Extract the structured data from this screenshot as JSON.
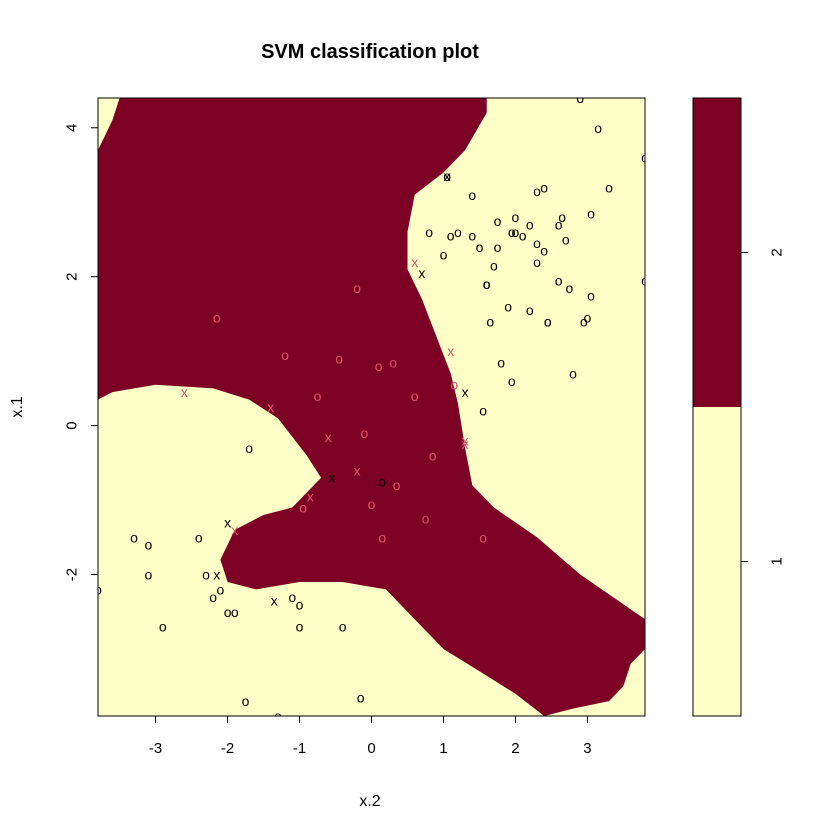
{
  "chart_data": {
    "type": "scatter",
    "title": "SVM classification plot",
    "xlabel": "x.2",
    "ylabel": "x.1",
    "xlim": [
      -3.8,
      3.8
    ],
    "ylim": [
      -3.9,
      4.4
    ],
    "xticks": [
      "-3",
      "-2",
      "-1",
      "0",
      "1",
      "2",
      "3"
    ],
    "xtick_values": [
      -3,
      -2,
      -1,
      0,
      1,
      2,
      3
    ],
    "yticks": [
      "-2",
      "0",
      "2",
      "4"
    ],
    "ytick_values": [
      -2,
      0,
      2,
      4
    ],
    "region_colors": {
      "1": "#FFFFC8",
      "2": "#7D0025"
    },
    "legend_labels": [
      "1",
      "2"
    ],
    "point_colors": {
      "1": "#000000",
      "2": "#DF536B"
    },
    "decision_region_class2_polygon": [
      [
        -3.8,
        4.4
      ],
      [
        1.6,
        4.4
      ],
      [
        1.6,
        4.2
      ],
      [
        1.3,
        3.7
      ],
      [
        1.0,
        3.4
      ],
      [
        0.6,
        3.1
      ],
      [
        0.5,
        2.6
      ],
      [
        0.5,
        2.1
      ],
      [
        0.7,
        1.7
      ],
      [
        0.9,
        1.2
      ],
      [
        1.1,
        0.7
      ],
      [
        1.2,
        0.3
      ],
      [
        1.3,
        -0.3
      ],
      [
        1.4,
        -0.8
      ],
      [
        1.7,
        -1.1
      ],
      [
        2.3,
        -1.5
      ],
      [
        2.9,
        -2.0
      ],
      [
        3.5,
        -2.4
      ],
      [
        3.8,
        -2.6
      ],
      [
        3.8,
        -3.0
      ],
      [
        3.6,
        -3.2
      ],
      [
        3.5,
        -3.5
      ],
      [
        3.3,
        -3.7
      ],
      [
        2.8,
        -3.8
      ],
      [
        2.4,
        -3.9
      ],
      [
        2.0,
        -3.6
      ],
      [
        1.5,
        -3.3
      ],
      [
        1.0,
        -3.0
      ],
      [
        0.6,
        -2.6
      ],
      [
        0.2,
        -2.2
      ],
      [
        -0.4,
        -2.1
      ],
      [
        -1.0,
        -2.1
      ],
      [
        -1.6,
        -2.2
      ],
      [
        -2.0,
        -2.1
      ],
      [
        -2.1,
        -1.8
      ],
      [
        -1.9,
        -1.4
      ],
      [
        -1.5,
        -1.2
      ],
      [
        -1.1,
        -1.1
      ],
      [
        -0.7,
        -0.7
      ],
      [
        -0.9,
        -0.4
      ],
      [
        -1.3,
        0.1
      ],
      [
        -1.7,
        0.35
      ],
      [
        -2.2,
        0.5
      ],
      [
        -3.0,
        0.55
      ],
      [
        -3.6,
        0.45
      ],
      [
        -3.8,
        0.35
      ],
      [
        -3.8,
        3.7
      ],
      [
        -3.6,
        4.1
      ],
      [
        -3.5,
        4.4
      ]
    ],
    "series": [
      {
        "name": "1",
        "marker": "o",
        "points": [
          [
            -3.8,
            -2.2
          ],
          [
            -3.3,
            -1.5
          ],
          [
            -3.1,
            -1.6
          ],
          [
            -3.1,
            -2.0
          ],
          [
            -2.9,
            -2.7
          ],
          [
            -2.4,
            -1.5
          ],
          [
            -2.3,
            -2.0
          ],
          [
            -2.2,
            -2.3
          ],
          [
            -2.1,
            -2.2
          ],
          [
            -2.0,
            -2.5
          ],
          [
            -1.9,
            -2.5
          ],
          [
            -1.7,
            -0.3
          ],
          [
            -1.75,
            -3.7
          ],
          [
            -1.3,
            -3.9
          ],
          [
            -1.1,
            -2.3
          ],
          [
            -1.0,
            -2.4
          ],
          [
            -1.0,
            -2.7
          ],
          [
            -0.4,
            -2.7
          ],
          [
            -0.15,
            -3.65
          ],
          [
            1.05,
            3.35
          ],
          [
            0.8,
            2.6
          ],
          [
            1.0,
            2.3
          ],
          [
            1.1,
            2.55
          ],
          [
            1.2,
            2.6
          ],
          [
            1.4,
            3.1
          ],
          [
            1.4,
            2.55
          ],
          [
            1.5,
            2.4
          ],
          [
            1.6,
            1.9
          ],
          [
            1.6,
            1.9
          ],
          [
            1.65,
            1.4
          ],
          [
            1.7,
            2.15
          ],
          [
            1.75,
            2.4
          ],
          [
            1.75,
            2.75
          ],
          [
            1.8,
            0.85
          ],
          [
            1.9,
            1.6
          ],
          [
            1.95,
            2.6
          ],
          [
            2.0,
            2.6
          ],
          [
            2.0,
            2.8
          ],
          [
            2.1,
            2.55
          ],
          [
            2.2,
            2.7
          ],
          [
            2.2,
            1.55
          ],
          [
            2.3,
            2.45
          ],
          [
            2.3,
            2.2
          ],
          [
            2.3,
            3.15
          ],
          [
            2.4,
            3.2
          ],
          [
            2.4,
            2.35
          ],
          [
            2.45,
            1.4
          ],
          [
            2.45,
            1.4
          ],
          [
            2.6,
            2.7
          ],
          [
            2.6,
            1.95
          ],
          [
            2.65,
            2.8
          ],
          [
            2.7,
            2.5
          ],
          [
            2.75,
            1.85
          ],
          [
            2.8,
            0.7
          ],
          [
            2.9,
            4.4
          ],
          [
            2.95,
            1.4
          ],
          [
            3.0,
            1.45
          ],
          [
            3.05,
            1.75
          ],
          [
            3.05,
            2.85
          ],
          [
            3.15,
            4.0
          ],
          [
            3.3,
            3.2
          ],
          [
            3.8,
            3.6
          ],
          [
            3.8,
            1.95
          ],
          [
            1.95,
            0.6
          ],
          [
            1.55,
            0.2
          ],
          [
            0.3,
            0.85
          ],
          [
            0.15,
            -0.75
          ],
          [
            0.75,
            -1.25
          ]
        ]
      },
      {
        "name": "1",
        "marker": "x",
        "points": [
          [
            1.05,
            3.35
          ],
          [
            0.7,
            2.05
          ],
          [
            1.3,
            0.45
          ],
          [
            -0.55,
            -0.7
          ],
          [
            -2.0,
            -1.3
          ],
          [
            -2.15,
            -2.0
          ],
          [
            -1.35,
            -2.35
          ]
        ]
      },
      {
        "name": "2",
        "marker": "o",
        "points": [
          [
            -0.2,
            1.85
          ],
          [
            -2.15,
            1.45
          ],
          [
            -1.2,
            0.95
          ],
          [
            -0.45,
            0.9
          ],
          [
            0.1,
            0.8
          ],
          [
            0.3,
            0.85
          ],
          [
            -0.75,
            0.4
          ],
          [
            0.6,
            0.4
          ],
          [
            1.15,
            0.55
          ],
          [
            -0.1,
            -0.1
          ],
          [
            0.85,
            -0.4
          ],
          [
            0.35,
            -0.8
          ],
          [
            0.0,
            -1.05
          ],
          [
            -0.95,
            -1.1
          ],
          [
            0.15,
            -1.5
          ],
          [
            0.75,
            -1.25
          ],
          [
            1.55,
            -1.5
          ]
        ]
      },
      {
        "name": "2",
        "marker": "x",
        "points": [
          [
            0.6,
            2.2
          ],
          [
            1.1,
            1.0
          ],
          [
            -2.6,
            0.45
          ],
          [
            -1.4,
            0.25
          ],
          [
            -0.6,
            -0.15
          ],
          [
            1.3,
            -0.2
          ],
          [
            1.3,
            -0.25
          ],
          [
            -0.2,
            -0.6
          ],
          [
            -0.85,
            -0.95
          ],
          [
            -1.9,
            -1.4
          ]
        ]
      }
    ]
  }
}
